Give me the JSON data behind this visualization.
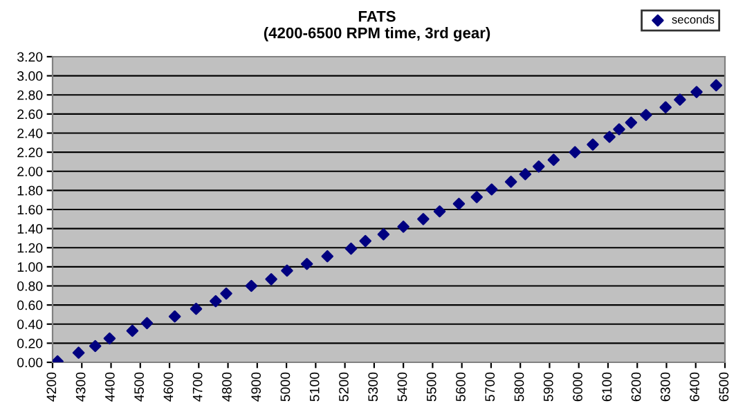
{
  "chart_data": {
    "type": "scatter",
    "title": "FATS\n(4200-6500 RPM time, 3rd gear)",
    "x": [
      4217,
      4289,
      4346,
      4395,
      4473,
      4523,
      4618,
      4691,
      4758,
      4794,
      4880,
      4948,
      5002,
      5070,
      5140,
      5221,
      5270,
      5332,
      5400,
      5468,
      5524,
      5590,
      5651,
      5702,
      5768,
      5817,
      5863,
      5914,
      5987,
      6048,
      6105,
      6138,
      6179,
      6230,
      6297,
      6346,
      6403,
      6470
    ],
    "series": [
      {
        "name": "seconds",
        "color": "#000080",
        "values": [
          0.01,
          0.1,
          0.17,
          0.25,
          0.33,
          0.41,
          0.48,
          0.56,
          0.64,
          0.72,
          0.8,
          0.87,
          0.96,
          1.03,
          1.11,
          1.19,
          1.27,
          1.34,
          1.42,
          1.5,
          1.58,
          1.66,
          1.73,
          1.81,
          1.89,
          1.97,
          2.05,
          2.12,
          2.2,
          2.28,
          2.36,
          2.44,
          2.51,
          2.59,
          2.67,
          2.75,
          2.83,
          2.9
        ]
      }
    ],
    "xlim": [
      4200,
      6500
    ],
    "xticks": [
      4200,
      4300,
      4400,
      4500,
      4600,
      4700,
      4800,
      4900,
      5000,
      5100,
      5200,
      5300,
      5400,
      5500,
      5600,
      5700,
      5800,
      5900,
      6000,
      6100,
      6200,
      6300,
      6400,
      6500
    ],
    "ylim": [
      0,
      3.2
    ],
    "yticks": [
      {
        "value": 0,
        "label": "0.00"
      },
      {
        "value": 0.2,
        "label": "0.20"
      },
      {
        "value": 0.4,
        "label": "0.40"
      },
      {
        "value": 0.6,
        "label": "0.60"
      },
      {
        "value": 0.8,
        "label": "0.80"
      },
      {
        "value": 1.0,
        "label": "1.00"
      },
      {
        "value": 1.2,
        "label": "1.20"
      },
      {
        "value": 1.4,
        "label": "1.40"
      },
      {
        "value": 1.6,
        "label": "1.60"
      },
      {
        "value": 1.8,
        "label": "1.80"
      },
      {
        "value": 2.0,
        "label": "2.00"
      },
      {
        "value": 2.2,
        "label": "2.20"
      },
      {
        "value": 2.4,
        "label": "2.40"
      },
      {
        "value": 2.6,
        "label": "2.60"
      },
      {
        "value": 2.8,
        "label": "2.80"
      },
      {
        "value": 3.0,
        "label": "3.00"
      },
      {
        "value": 3.2,
        "label": "3.20"
      }
    ],
    "grid": "y",
    "legend": "top right",
    "marker": "diamond"
  }
}
